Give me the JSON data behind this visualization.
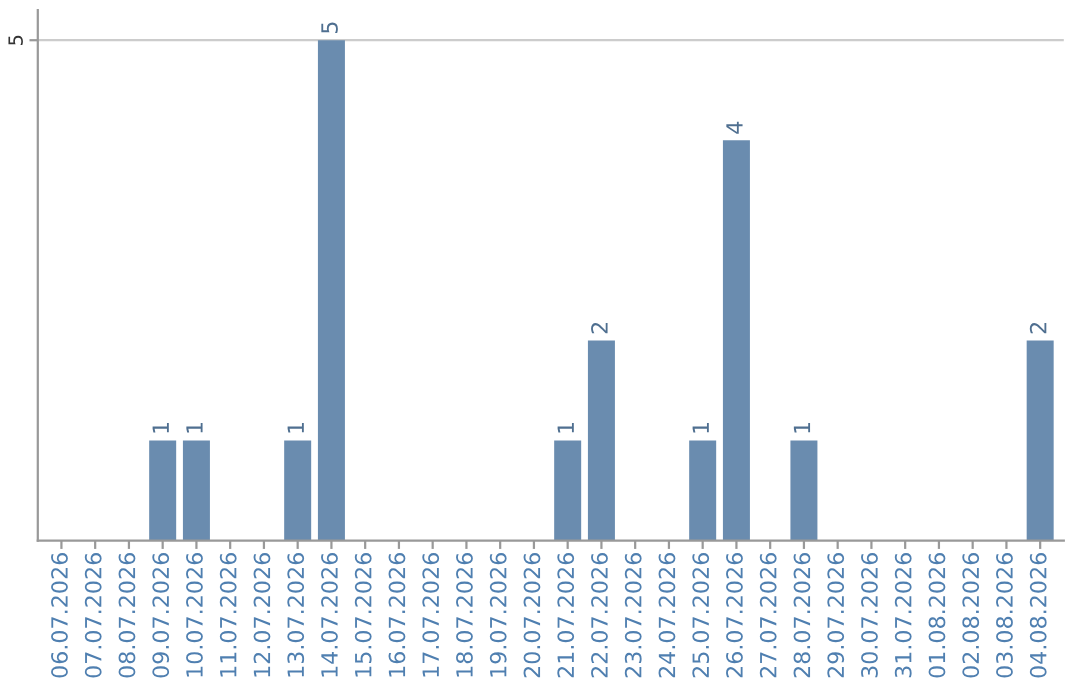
{
  "chart_data": {
    "type": "bar",
    "categories": [
      "06.07.2026",
      "07.07.2026",
      "08.07.2026",
      "09.07.2026",
      "10.07.2026",
      "11.07.2026",
      "12.07.2026",
      "13.07.2026",
      "14.07.2026",
      "15.07.2026",
      "16.07.2026",
      "17.07.2026",
      "18.07.2026",
      "19.07.2026",
      "20.07.2026",
      "21.07.2026",
      "22.07.2026",
      "23.07.2026",
      "24.07.2026",
      "25.07.2026",
      "26.07.2026",
      "27.07.2026",
      "28.07.2026",
      "29.07.2026",
      "30.07.2026",
      "31.07.2026",
      "01.08.2026",
      "02.08.2026",
      "03.08.2026",
      "04.08.2026"
    ],
    "values": [
      0,
      0,
      0,
      1,
      1,
      0,
      0,
      1,
      5,
      0,
      0,
      0,
      0,
      0,
      0,
      1,
      2,
      0,
      0,
      1,
      4,
      0,
      1,
      0,
      0,
      0,
      0,
      0,
      0,
      2
    ],
    "value_labels": [
      null,
      null,
      null,
      "1",
      "1",
      null,
      null,
      "1",
      "5",
      null,
      null,
      null,
      null,
      null,
      null,
      "1",
      "2",
      null,
      null,
      "1",
      "4",
      null,
      "1",
      null,
      null,
      null,
      null,
      null,
      null,
      "2"
    ],
    "color": "#6a8caf",
    "ylim": [
      0,
      5.3
    ],
    "yticks": [
      5
    ],
    "grid": "y"
  }
}
